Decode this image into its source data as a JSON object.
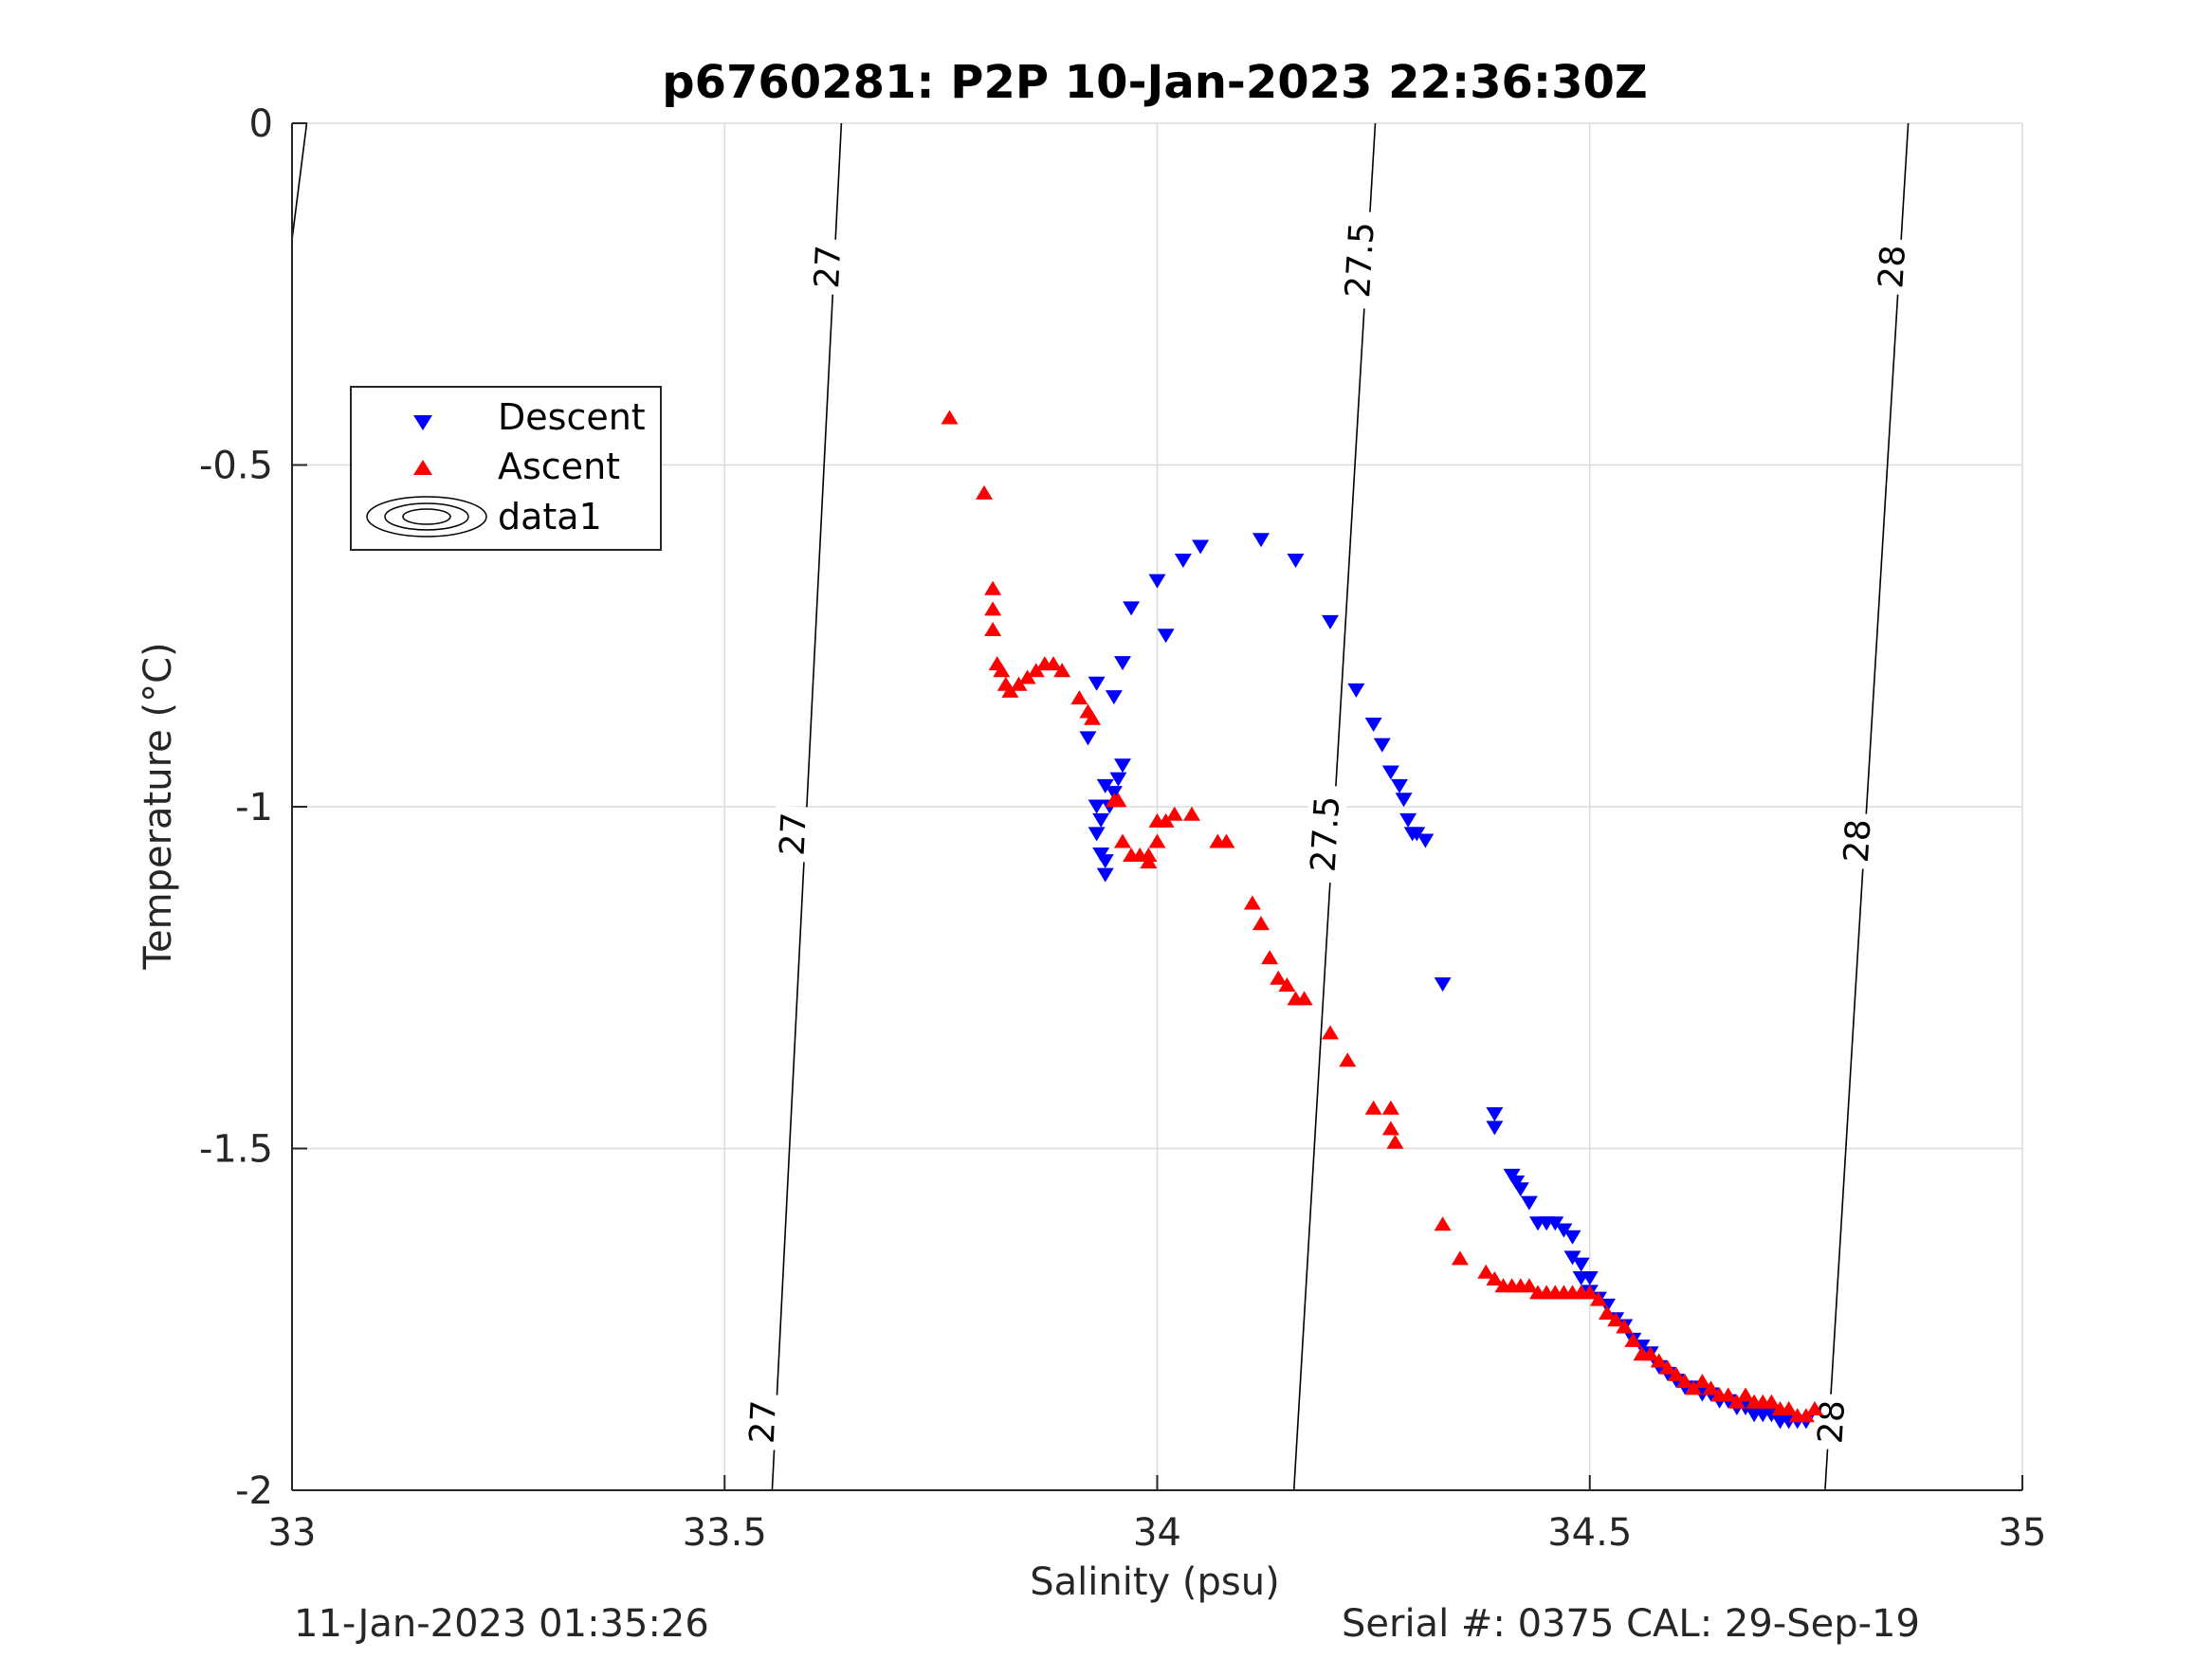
{
  "footer": {
    "left": "11-Jan-2023 01:35:26",
    "right": "Serial #: 0375  CAL: 29-Sep-19"
  },
  "chart_data": {
    "type": "scatter",
    "title": "p6760281: P2P 10-Jan-2023 22:36:30Z",
    "xlabel": "Salinity (psu)",
    "ylabel": "Temperature (°C)",
    "xlim": [
      33,
      35
    ],
    "ylim": [
      -2,
      0
    ],
    "xticks": [
      33,
      33.5,
      34,
      34.5,
      35
    ],
    "xtick_labels": [
      "33",
      "33.5",
      "34",
      "34.5",
      "35"
    ],
    "yticks": [
      0,
      -0.5,
      -1,
      -1.5,
      -2
    ],
    "ytick_labels": [
      "0",
      "-0.5",
      "-1",
      "-1.5",
      "-2"
    ],
    "grid": true,
    "legend": {
      "position": "upper-left",
      "entries": [
        "Descent",
        "Ascent",
        "data1"
      ]
    },
    "colors": {
      "descent": "#0000ff",
      "ascent": "#ff0000",
      "contour": "#000000",
      "grid": "#dcdcdc"
    },
    "series": [
      {
        "name": "Descent",
        "marker": "triangle-down",
        "points": [
          [
            34.12,
            -0.61
          ],
          [
            34.16,
            -0.64
          ],
          [
            34.05,
            -0.62
          ],
          [
            34.03,
            -0.64
          ],
          [
            34.0,
            -0.67
          ],
          [
            34.01,
            -0.75
          ],
          [
            33.97,
            -0.71
          ],
          [
            33.96,
            -0.79
          ],
          [
            33.95,
            -0.84
          ],
          [
            33.93,
            -0.82
          ],
          [
            33.92,
            -0.9
          ],
          [
            34.2,
            -0.73
          ],
          [
            34.23,
            -0.83
          ],
          [
            34.25,
            -0.88
          ],
          [
            34.26,
            -0.91
          ],
          [
            34.27,
            -0.95
          ],
          [
            34.28,
            -0.97
          ],
          [
            34.285,
            -0.99
          ],
          [
            34.29,
            -1.02
          ],
          [
            34.295,
            -1.04
          ],
          [
            34.3,
            -1.04
          ],
          [
            34.31,
            -1.05
          ],
          [
            34.33,
            -1.26
          ],
          [
            33.96,
            -0.94
          ],
          [
            33.955,
            -0.96
          ],
          [
            33.95,
            -0.98
          ],
          [
            33.94,
            -0.97
          ],
          [
            33.945,
            -1.0
          ],
          [
            33.93,
            -1.0
          ],
          [
            33.935,
            -1.02
          ],
          [
            33.93,
            -1.04
          ],
          [
            33.935,
            -1.07
          ],
          [
            33.94,
            -1.08
          ],
          [
            33.94,
            -1.1
          ],
          [
            34.39,
            -1.45
          ],
          [
            34.39,
            -1.47
          ],
          [
            34.41,
            -1.54
          ],
          [
            34.415,
            -1.55
          ],
          [
            34.42,
            -1.56
          ],
          [
            34.43,
            -1.58
          ],
          [
            34.44,
            -1.61
          ],
          [
            34.45,
            -1.61
          ],
          [
            34.46,
            -1.61
          ],
          [
            34.47,
            -1.62
          ],
          [
            34.48,
            -1.63
          ],
          [
            34.48,
            -1.66
          ],
          [
            34.49,
            -1.67
          ],
          [
            34.49,
            -1.69
          ],
          [
            34.5,
            -1.69
          ],
          [
            34.5,
            -1.71
          ],
          [
            34.51,
            -1.72
          ],
          [
            34.52,
            -1.73
          ],
          [
            34.53,
            -1.75
          ],
          [
            34.54,
            -1.76
          ],
          [
            34.55,
            -1.78
          ],
          [
            34.56,
            -1.79
          ],
          [
            34.57,
            -1.8
          ],
          [
            34.58,
            -1.82
          ],
          [
            34.59,
            -1.83
          ],
          [
            34.6,
            -1.84
          ],
          [
            34.61,
            -1.85
          ],
          [
            34.62,
            -1.85
          ],
          [
            34.63,
            -1.86
          ],
          [
            34.64,
            -1.86
          ],
          [
            34.65,
            -1.87
          ],
          [
            34.66,
            -1.87
          ],
          [
            34.67,
            -1.88
          ],
          [
            34.68,
            -1.88
          ],
          [
            34.69,
            -1.89
          ],
          [
            34.7,
            -1.89
          ],
          [
            34.71,
            -1.89
          ],
          [
            34.72,
            -1.9
          ],
          [
            34.73,
            -1.9
          ],
          [
            34.74,
            -1.9
          ],
          [
            34.75,
            -1.9
          ]
        ]
      },
      {
        "name": "Ascent",
        "marker": "triangle-up",
        "points": [
          [
            33.76,
            -0.43
          ],
          [
            33.8,
            -0.54
          ],
          [
            33.81,
            -0.68
          ],
          [
            33.81,
            -0.71
          ],
          [
            33.81,
            -0.74
          ],
          [
            33.815,
            -0.79
          ],
          [
            33.82,
            -0.8
          ],
          [
            33.825,
            -0.82
          ],
          [
            33.83,
            -0.83
          ],
          [
            33.84,
            -0.82
          ],
          [
            33.85,
            -0.81
          ],
          [
            33.86,
            -0.8
          ],
          [
            33.87,
            -0.79
          ],
          [
            33.88,
            -0.79
          ],
          [
            33.89,
            -0.8
          ],
          [
            33.91,
            -0.84
          ],
          [
            33.92,
            -0.86
          ],
          [
            33.925,
            -0.87
          ],
          [
            33.95,
            -0.99
          ],
          [
            33.955,
            -0.99
          ],
          [
            33.96,
            -1.05
          ],
          [
            33.97,
            -1.07
          ],
          [
            33.98,
            -1.07
          ],
          [
            33.99,
            -1.08
          ],
          [
            33.99,
            -1.07
          ],
          [
            34.0,
            -1.05
          ],
          [
            34.0,
            -1.02
          ],
          [
            34.01,
            -1.02
          ],
          [
            34.02,
            -1.01
          ],
          [
            34.04,
            -1.01
          ],
          [
            34.07,
            -1.05
          ],
          [
            34.08,
            -1.05
          ],
          [
            34.11,
            -1.14
          ],
          [
            34.12,
            -1.17
          ],
          [
            34.13,
            -1.22
          ],
          [
            34.14,
            -1.25
          ],
          [
            34.15,
            -1.26
          ],
          [
            34.16,
            -1.28
          ],
          [
            34.17,
            -1.28
          ],
          [
            34.2,
            -1.33
          ],
          [
            34.22,
            -1.37
          ],
          [
            34.25,
            -1.44
          ],
          [
            34.27,
            -1.44
          ],
          [
            34.27,
            -1.47
          ],
          [
            34.275,
            -1.49
          ],
          [
            34.33,
            -1.61
          ],
          [
            34.35,
            -1.66
          ],
          [
            34.38,
            -1.68
          ],
          [
            34.39,
            -1.69
          ],
          [
            34.4,
            -1.7
          ],
          [
            34.41,
            -1.7
          ],
          [
            34.42,
            -1.7
          ],
          [
            34.43,
            -1.7
          ],
          [
            34.44,
            -1.71
          ],
          [
            34.45,
            -1.71
          ],
          [
            34.46,
            -1.71
          ],
          [
            34.47,
            -1.71
          ],
          [
            34.48,
            -1.71
          ],
          [
            34.49,
            -1.71
          ],
          [
            34.5,
            -1.71
          ],
          [
            34.51,
            -1.72
          ],
          [
            34.52,
            -1.74
          ],
          [
            34.53,
            -1.75
          ],
          [
            34.54,
            -1.76
          ],
          [
            34.55,
            -1.78
          ],
          [
            34.56,
            -1.8
          ],
          [
            34.57,
            -1.8
          ],
          [
            34.58,
            -1.81
          ],
          [
            34.59,
            -1.82
          ],
          [
            34.6,
            -1.83
          ],
          [
            34.61,
            -1.84
          ],
          [
            34.62,
            -1.85
          ],
          [
            34.63,
            -1.84
          ],
          [
            34.64,
            -1.85
          ],
          [
            34.65,
            -1.86
          ],
          [
            34.66,
            -1.86
          ],
          [
            34.67,
            -1.87
          ],
          [
            34.68,
            -1.86
          ],
          [
            34.69,
            -1.87
          ],
          [
            34.7,
            -1.87
          ],
          [
            34.71,
            -1.87
          ],
          [
            34.72,
            -1.88
          ],
          [
            34.73,
            -1.88
          ],
          [
            34.74,
            -1.89
          ],
          [
            34.75,
            -1.89
          ],
          [
            34.76,
            -1.88
          ]
        ]
      }
    ],
    "contours": [
      {
        "level": "27",
        "points": [
          [
            33.635,
            0
          ],
          [
            33.555,
            -2
          ]
        ],
        "labels": [
          {
            "text": "27",
            "s": 33.62,
            "t": -0.21
          },
          {
            "text": "27",
            "s": 33.58,
            "t": -1.04
          },
          {
            "text": "27",
            "s": 33.545,
            "t": -1.9
          }
        ]
      },
      {
        "level": "27.5",
        "points": [
          [
            34.252,
            0
          ],
          [
            34.158,
            -2
          ]
        ],
        "labels": [
          {
            "text": "27.5",
            "s": 34.235,
            "t": -0.2
          },
          {
            "text": "27.5",
            "s": 34.195,
            "t": -1.04
          }
        ]
      },
      {
        "level": "28",
        "points": [
          [
            34.868,
            0
          ],
          [
            34.772,
            -2
          ]
        ],
        "labels": [
          {
            "text": "28",
            "s": 34.85,
            "t": -0.21
          },
          {
            "text": "28",
            "s": 34.81,
            "t": -1.05
          },
          {
            "text": "28",
            "s": 34.78,
            "t": -1.9
          }
        ]
      },
      {
        "level": "",
        "points": [
          [
            33.017,
            0
          ],
          [
            33.0,
            -0.17
          ]
        ],
        "labels": []
      }
    ]
  }
}
